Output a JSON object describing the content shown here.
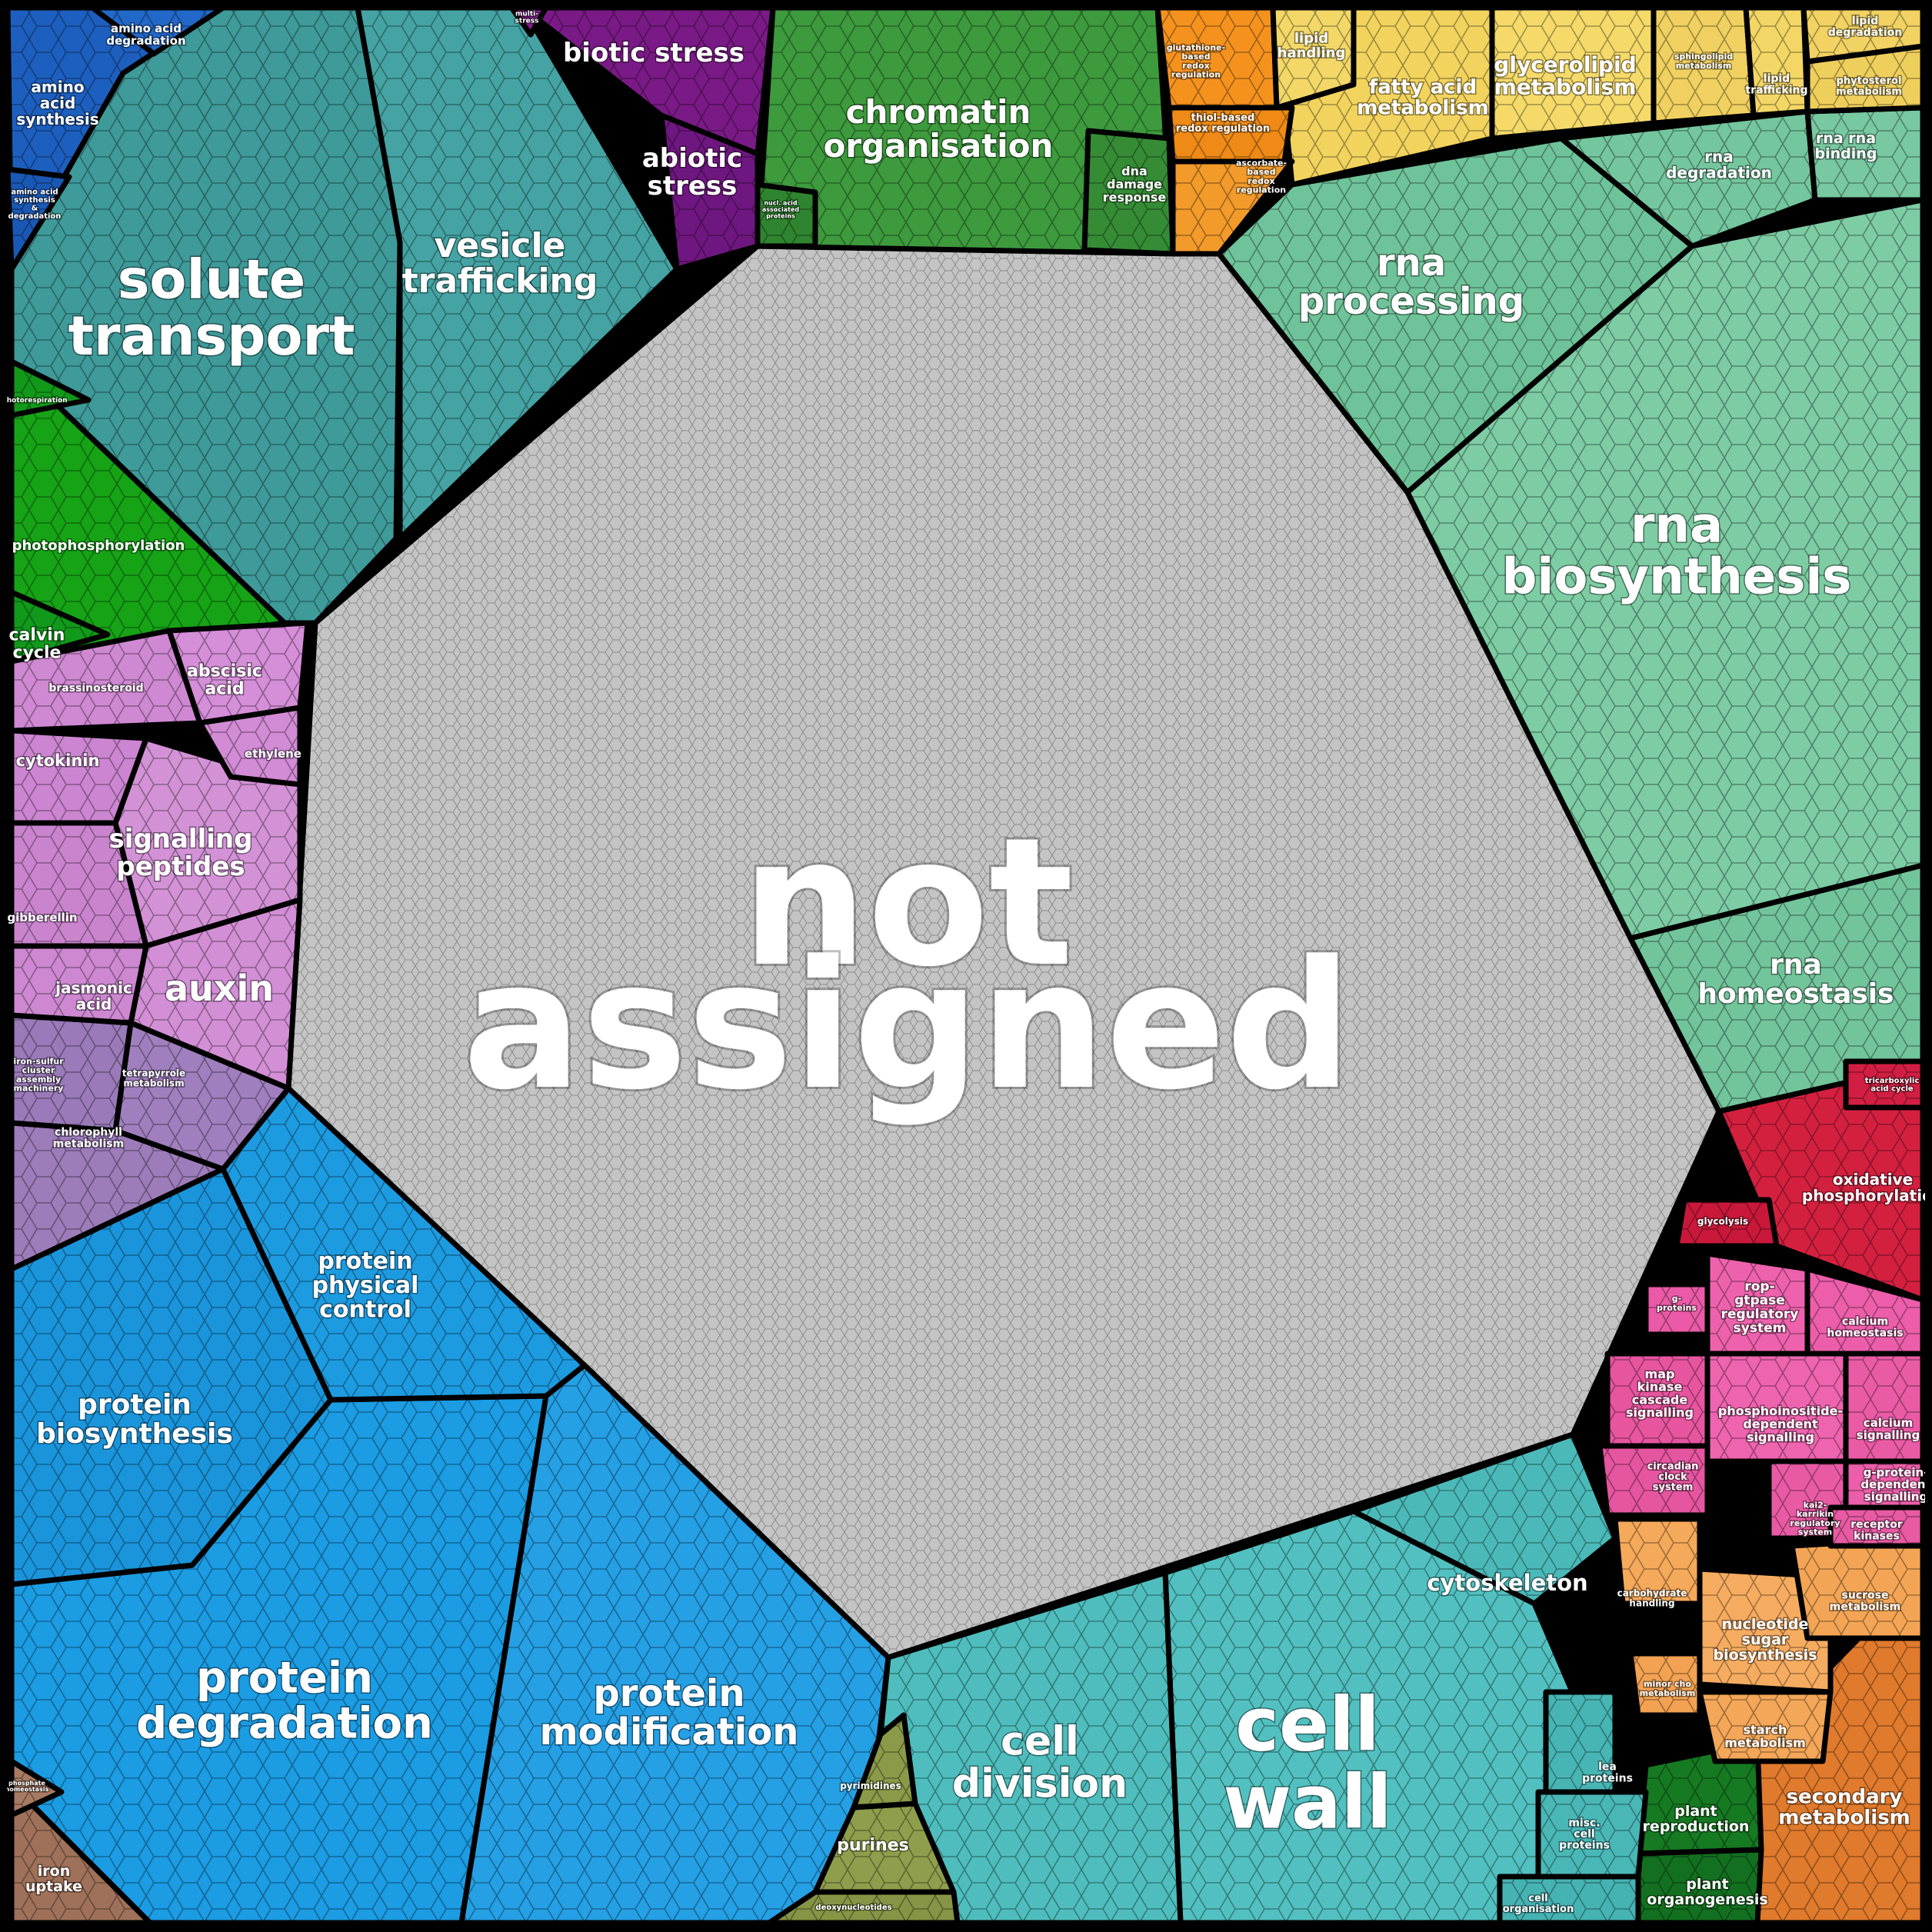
{
  "diagram": {
    "type": "voronoi-treemap",
    "regions": [
      {
        "name": "not assigned",
        "lines": [
          "not",
          "assigned"
        ],
        "color": "#c4c4c4"
      },
      {
        "name": "solute transport",
        "lines": [
          "solute",
          "transport"
        ],
        "color": "#3f9a9a"
      },
      {
        "name": "vesicle trafficking",
        "lines": [
          "vesicle",
          "trafficking"
        ],
        "color": "#45a3a3"
      },
      {
        "name": "amino acid synthesis",
        "lines": [
          "amino",
          "acid",
          "synthesis"
        ],
        "color": "#1d5fbf"
      },
      {
        "name": "amino acid degradation",
        "lines": [
          "amino acid",
          "degradation"
        ],
        "color": "#2268c9"
      },
      {
        "name": "amino acid synthesis & degradation",
        "lines": [
          "amino acid",
          "synthesis",
          "&",
          "degradation"
        ],
        "color": "#1a58b5"
      },
      {
        "name": "biotic stress",
        "lines": [
          "biotic stress"
        ],
        "color": "#7a1a86"
      },
      {
        "name": "abiotic stress",
        "lines": [
          "abiotic",
          "stress"
        ],
        "color": "#6f1780"
      },
      {
        "name": "multi-stress",
        "lines": [
          "multi-",
          "stress"
        ],
        "color": "#821c8e"
      },
      {
        "name": "chromatin organisation",
        "lines": [
          "chromatin",
          "organisation"
        ],
        "color": "#3d9a3d"
      },
      {
        "name": "dna damage response",
        "lines": [
          "dna",
          "damage",
          "response"
        ],
        "color": "#358c35"
      },
      {
        "name": "nucl. acid-associated proteins",
        "lines": [
          "nucl. acid",
          "associated",
          "proteins"
        ],
        "color": "#2f852f"
      },
      {
        "name": "glutathione-based redox regulation",
        "lines": [
          "glutathione-",
          "based",
          "redox",
          "regulation"
        ],
        "color": "#f5921e"
      },
      {
        "name": "thiol-based redox regulation",
        "lines": [
          "thiol-based",
          "redox regulation"
        ],
        "color": "#ee8a15"
      },
      {
        "name": "ascorbate-based redox regulation",
        "lines": [
          "ascorbate-",
          "based",
          "redox",
          "regulation"
        ],
        "color": "#f29a2a"
      },
      {
        "name": "lipid handling",
        "lines": [
          "lipid",
          "handling"
        ],
        "color": "#f3d868"
      },
      {
        "name": "fatty acid metabolism",
        "lines": [
          "fatty acid",
          "metabolism"
        ],
        "color": "#f2d35e"
      },
      {
        "name": "glycerolipid metabolism",
        "lines": [
          "glycerolipid",
          "metabolism"
        ],
        "color": "#f5da6a"
      },
      {
        "name": "sphingolipid metabolism",
        "lines": [
          "sphingolipid",
          "metabolism"
        ],
        "color": "#f0d060"
      },
      {
        "name": "lipid trafficking",
        "lines": [
          "lipid",
          "trafficking"
        ],
        "color": "#f3d665"
      },
      {
        "name": "lipid degradation",
        "lines": [
          "lipid",
          "degradation"
        ],
        "color": "#f1d262"
      },
      {
        "name": "phytosterol metabolism",
        "lines": [
          "phytosterol",
          "metabolism"
        ],
        "color": "#efcf5c"
      },
      {
        "name": "rna processing",
        "lines": [
          "rna",
          "processing"
        ],
        "color": "#6fc39a"
      },
      {
        "name": "rna degradation",
        "lines": [
          "rna",
          "degradation"
        ],
        "color": "#74c69e"
      },
      {
        "name": "rna rna binding",
        "lines": [
          "rna rna",
          "binding"
        ],
        "color": "#78c8a1"
      },
      {
        "name": "rna biosynthesis",
        "lines": [
          "rna",
          "biosynthesis"
        ],
        "color": "#7dccA4"
      },
      {
        "name": "rna homeostasis",
        "lines": [
          "rna",
          "homeostasis"
        ],
        "color": "#72c49b"
      },
      {
        "name": "photophosphorylation",
        "lines": [
          "photophosphorylation"
        ],
        "color": "#16a316"
      },
      {
        "name": "photorespiration",
        "lines": [
          "photorespiration"
        ],
        "color": "#12991a"
      },
      {
        "name": "calvin cycle",
        "lines": [
          "calvin",
          "cycle"
        ],
        "color": "#10991a"
      },
      {
        "name": "abscisic acid",
        "lines": [
          "abscisic",
          "acid"
        ],
        "color": "#d58ed8"
      },
      {
        "name": "brassinosteroid",
        "lines": [
          "brassinosteroid"
        ],
        "color": "#cf88d2"
      },
      {
        "name": "ethylene",
        "lines": [
          "ethylene"
        ],
        "color": "#d28bd5"
      },
      {
        "name": "cytokinin",
        "lines": [
          "cytokinin"
        ],
        "color": "#cc85d0"
      },
      {
        "name": "signalling peptides",
        "lines": [
          "signalling",
          "peptides"
        ],
        "color": "#d392d6"
      },
      {
        "name": "gibberellin",
        "lines": [
          "gibberellin"
        ],
        "color": "#ca84ce"
      },
      {
        "name": "jasmonic acid",
        "lines": [
          "jasmonic",
          "acid"
        ],
        "color": "#cd88d1"
      },
      {
        "name": "auxin",
        "lines": [
          "auxin"
        ],
        "color": "#d28fd5"
      },
      {
        "name": "iron-sulfur cluster assembly machinery",
        "lines": [
          "iron-sulfur",
          "cluster",
          "assembly",
          "machinery"
        ],
        "color": "#9a7ab8"
      },
      {
        "name": "tetrapyrrole metabolism",
        "lines": [
          "tetrapyrrole",
          "metabolism"
        ],
        "color": "#a07fbe"
      },
      {
        "name": "chlorophyll metabolism",
        "lines": [
          "chlorophyll",
          "metabolism"
        ],
        "color": "#9d7cba"
      },
      {
        "name": "protein physical control",
        "lines": [
          "protein",
          "physical",
          "control"
        ],
        "color": "#1d9be0"
      },
      {
        "name": "protein biosynthesis",
        "lines": [
          "protein",
          "biosynthesis"
        ],
        "color": "#1a95db"
      },
      {
        "name": "protein degradation",
        "lines": [
          "protein",
          "degradation"
        ],
        "color": "#1b9ce3"
      },
      {
        "name": "protein modification",
        "lines": [
          "protein",
          "modification"
        ],
        "color": "#25a0e5"
      },
      {
        "name": "iron uptake",
        "lines": [
          "iron",
          "uptake"
        ],
        "color": "#a0715a"
      },
      {
        "name": "phosphate homeostasis",
        "lines": [
          "phosphate",
          "homeostasis"
        ],
        "color": "#a87a62"
      },
      {
        "name": "pyrimidines",
        "lines": [
          "pyrimidines"
        ],
        "color": "#8a9a48"
      },
      {
        "name": "purines",
        "lines": [
          "purines"
        ],
        "color": "#8f9e4c"
      },
      {
        "name": "deoxynucleotides",
        "lines": [
          "deoxynucleotides"
        ],
        "color": "#869545"
      },
      {
        "name": "cell division",
        "lines": [
          "cell",
          "division"
        ],
        "color": "#4fbdbd"
      },
      {
        "name": "cell wall",
        "lines": [
          "cell",
          "wall"
        ],
        "color": "#52c0c0"
      },
      {
        "name": "cytoskeleton",
        "lines": [
          "cytoskeleton"
        ],
        "color": "#4cb9b9"
      },
      {
        "name": "lea proteins",
        "lines": [
          "lea",
          "proteins"
        ],
        "color": "#48b5b5"
      },
      {
        "name": "misc. cell proteins",
        "lines": [
          "misc.",
          "cell",
          "proteins"
        ],
        "color": "#4ab7b7"
      },
      {
        "name": "cell organisation",
        "lines": [
          "cell",
          "organisation"
        ],
        "color": "#46b3b3"
      },
      {
        "name": "plant reproduction",
        "lines": [
          "plant",
          "reproduction"
        ],
        "color": "#167a22"
      },
      {
        "name": "plant organogenesis",
        "lines": [
          "plant",
          "organogenesis"
        ],
        "color": "#137020"
      },
      {
        "name": "secondary metabolism",
        "lines": [
          "secondary",
          "metabolism"
        ],
        "color": "#e07a2c"
      },
      {
        "name": "carbohydrate handling",
        "lines": [
          "carbohydrate",
          "handling"
        ],
        "color": "#f5a95a"
      },
      {
        "name": "sucrose metabolism",
        "lines": [
          "sucrose",
          "metabolism"
        ],
        "color": "#f3a555"
      },
      {
        "name": "nucleotide sugar biosynthesis",
        "lines": [
          "nucleotide",
          "sugar",
          "biosynthesis"
        ],
        "color": "#f6ac60"
      },
      {
        "name": "minor cho metabolism",
        "lines": [
          "minor cho",
          "metabolism"
        ],
        "color": "#f2a252"
      },
      {
        "name": "starch metabolism",
        "lines": [
          "starch",
          "metabolism"
        ],
        "color": "#f4a758"
      },
      {
        "name": "tricarboxylic acid cycle",
        "lines": [
          "tricarboxylic",
          "acid cycle"
        ],
        "color": "#d21e42"
      },
      {
        "name": "oxidative phosphorylation",
        "lines": [
          "oxidative",
          "phosphorylation"
        ],
        "color": "#d4203f"
      },
      {
        "name": "glycolysis",
        "lines": [
          "glycolysis"
        ],
        "color": "#c9183a"
      },
      {
        "name": "g-proteins",
        "lines": [
          "g-",
          "proteins"
        ],
        "color": "#ea5aa7"
      },
      {
        "name": "rop-gtpase regulatory system",
        "lines": [
          "rop-",
          "gtpase",
          "regulatory",
          "system"
        ],
        "color": "#ee62ad"
      },
      {
        "name": "calcium homeostasis",
        "lines": [
          "calcium",
          "homeostasis"
        ],
        "color": "#ec5eaa"
      },
      {
        "name": "map kinase cascade signalling",
        "lines": [
          "map",
          "kinase",
          "cascade",
          "signalling"
        ],
        "color": "#e8559f"
      },
      {
        "name": "phosphoinositide-dependent signalling",
        "lines": [
          "phosphoinositide-",
          "dependent",
          "signalling"
        ],
        "color": "#ef64af"
      },
      {
        "name": "calcium signalling",
        "lines": [
          "calcium",
          "signalling"
        ],
        "color": "#ea5ba6"
      },
      {
        "name": "circadian clock system",
        "lines": [
          "circadian",
          "clock",
          "system"
        ],
        "color": "#e655a0"
      },
      {
        "name": "kai2 karrikin regulatory system",
        "lines": [
          "kai2-",
          "karrikin",
          "regulatory",
          "system"
        ],
        "color": "#e95aa5"
      },
      {
        "name": "g-protein-dependent signalling",
        "lines": [
          "g-protein-",
          "dependent",
          "signalling"
        ],
        "color": "#ec5ea9"
      },
      {
        "name": "receptor kinases",
        "lines": [
          "receptor",
          "kinases"
        ],
        "color": "#e85aa3"
      }
    ]
  }
}
